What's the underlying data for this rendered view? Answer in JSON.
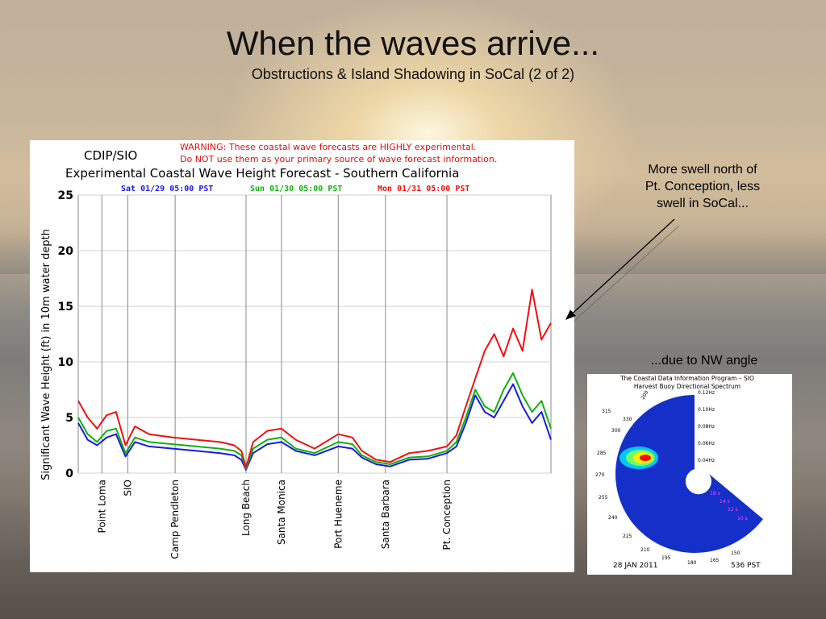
{
  "slide": {
    "title": "When the waves arrive...",
    "subtitle": "Obstructions & Island Shadowing in SoCal (2 of 2)"
  },
  "annotations": {
    "more_swell": [
      "More swell north of",
      "Pt. Conception, less",
      "swell in SoCal..."
    ],
    "nw_angle": "...due to NW angle"
  },
  "forecast_panel": {
    "source": "CDIP/SIO",
    "warning_line1": "WARNING:  These coastal wave forecasts are HIGHLY experimental.",
    "warning_line2": "Do NOT use them as your primary source of wave forecast information.",
    "chart_title": "Experimental Coastal Wave Height Forecast - Southern California",
    "legend": [
      {
        "label": "Sat 01/29 05:00 PST",
        "color": "#1a1adf"
      },
      {
        "label": "Sun 01/30 05:00 PST",
        "color": "#10b010"
      },
      {
        "label": "Mon 01/31 05:00 PST",
        "color": "#ee1111"
      }
    ],
    "ylabel": "Significant Wave Height (ft) in 10m water depth",
    "yticks": [
      "0",
      "5",
      "10",
      "15",
      "20",
      "25"
    ],
    "locations": [
      "Point Loma",
      "SIO",
      "Camp Pendleton",
      "Long Beach",
      "Santa Monica",
      "Port Hueneme",
      "Santa Barbara",
      "Pt. Conception"
    ]
  },
  "chart_data": {
    "type": "line",
    "title": "Experimental Coastal Wave Height Forecast - Southern California",
    "ylabel": "Significant Wave Height (ft) in 10m water depth",
    "ylim": [
      0,
      25
    ],
    "grid": true,
    "x_categories": [
      "Point Loma",
      "SIO",
      "Camp Pendleton",
      "Long Beach",
      "Santa Monica",
      "Port Hueneme",
      "Santa Barbara",
      "Pt. Conception"
    ],
    "x_positions_note": "coastal alongshore position",
    "x_category_positions": [
      0.05,
      0.105,
      0.205,
      0.355,
      0.43,
      0.55,
      0.65,
      0.78
    ],
    "series": [
      {
        "name": "Sat 01/29 05:00 PST",
        "color": "#1a1adf",
        "x": [
          0.0,
          0.02,
          0.04,
          0.06,
          0.08,
          0.1,
          0.12,
          0.15,
          0.2,
          0.25,
          0.3,
          0.33,
          0.345,
          0.355,
          0.37,
          0.4,
          0.43,
          0.46,
          0.5,
          0.55,
          0.58,
          0.6,
          0.63,
          0.66,
          0.7,
          0.74,
          0.78,
          0.8,
          0.82,
          0.84,
          0.86,
          0.88,
          0.9,
          0.92,
          0.94,
          0.96,
          0.98,
          1.0
        ],
        "y": [
          4.5,
          3.0,
          2.5,
          3.2,
          3.5,
          1.5,
          2.8,
          2.4,
          2.2,
          2.0,
          1.8,
          1.6,
          1.2,
          0.3,
          1.8,
          2.6,
          2.8,
          2.0,
          1.6,
          2.4,
          2.2,
          1.4,
          0.8,
          0.6,
          1.2,
          1.3,
          1.8,
          2.4,
          4.5,
          7.0,
          5.5,
          5.0,
          6.5,
          8.0,
          6.0,
          4.5,
          5.5,
          3.0
        ]
      },
      {
        "name": "Sun 01/30 05:00 PST",
        "color": "#10b010",
        "x": [
          0.0,
          0.02,
          0.04,
          0.06,
          0.08,
          0.1,
          0.12,
          0.15,
          0.2,
          0.25,
          0.3,
          0.33,
          0.345,
          0.355,
          0.37,
          0.4,
          0.43,
          0.46,
          0.5,
          0.55,
          0.58,
          0.6,
          0.63,
          0.66,
          0.7,
          0.74,
          0.78,
          0.8,
          0.82,
          0.84,
          0.86,
          0.88,
          0.9,
          0.92,
          0.94,
          0.96,
          0.98,
          1.0
        ],
        "y": [
          5.0,
          3.5,
          2.8,
          3.8,
          4.0,
          1.8,
          3.2,
          2.8,
          2.6,
          2.4,
          2.2,
          2.0,
          1.6,
          0.4,
          2.2,
          3.0,
          3.2,
          2.2,
          1.8,
          2.8,
          2.6,
          1.6,
          1.0,
          0.8,
          1.4,
          1.5,
          2.0,
          2.8,
          5.0,
          7.5,
          6.0,
          5.5,
          7.5,
          9.0,
          7.0,
          5.5,
          6.5,
          4.0
        ]
      },
      {
        "name": "Mon 01/31 05:00 PST",
        "color": "#ee1111",
        "x": [
          0.0,
          0.02,
          0.04,
          0.06,
          0.08,
          0.1,
          0.12,
          0.15,
          0.2,
          0.25,
          0.3,
          0.33,
          0.345,
          0.355,
          0.37,
          0.4,
          0.43,
          0.46,
          0.5,
          0.55,
          0.58,
          0.6,
          0.63,
          0.66,
          0.7,
          0.74,
          0.78,
          0.8,
          0.82,
          0.84,
          0.86,
          0.88,
          0.9,
          0.92,
          0.94,
          0.96,
          0.98,
          1.0
        ],
        "y": [
          6.5,
          5.0,
          4.0,
          5.2,
          5.5,
          2.5,
          4.2,
          3.5,
          3.2,
          3.0,
          2.8,
          2.5,
          2.0,
          0.5,
          2.8,
          3.8,
          4.0,
          3.0,
          2.2,
          3.5,
          3.2,
          2.0,
          1.2,
          1.0,
          1.8,
          2.0,
          2.4,
          3.4,
          6.0,
          8.5,
          11.0,
          12.5,
          10.5,
          13.0,
          11.0,
          16.5,
          12.0,
          13.5
        ]
      }
    ]
  },
  "spectrum": {
    "title1": "The Coastal Data Information Program – SIO",
    "title2": "Harvest Buoy Directional Spectrum",
    "freq_labels": [
      "0.12Hz",
      "0.10Hz",
      "0.08Hz",
      "0.06Hz",
      "0.04Hz"
    ],
    "period_labels": [
      "18 s",
      "14 s",
      "12 s",
      "10 s"
    ],
    "dir_labels": [
      "300",
      "315",
      "330",
      "285",
      "270",
      "255",
      "240",
      "225",
      "210",
      "195",
      "180",
      "165",
      "150"
    ],
    "top_label": "200",
    "date": "28 JAN 2011",
    "time": "536 PST"
  }
}
